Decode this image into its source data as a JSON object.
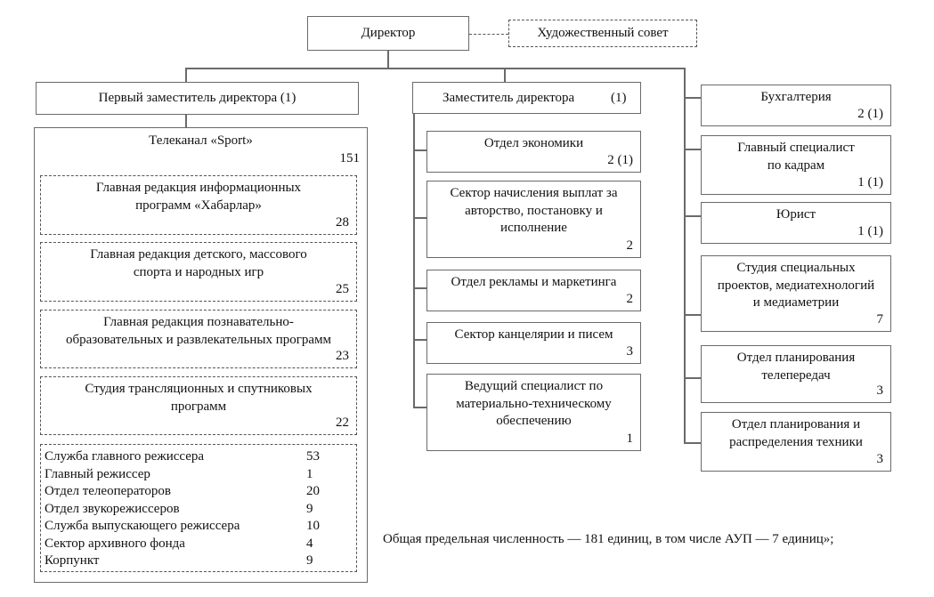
{
  "director": {
    "label": "Директор"
  },
  "art_council": {
    "label": "Художественный совет"
  },
  "first_deputy": {
    "label": "Первый заместитель директора (1)"
  },
  "deputy": {
    "label": "Заместитель директора",
    "count": "(1)"
  },
  "channel": {
    "title": "Телеканал «Sport»",
    "count": "151",
    "units": [
      {
        "lines": [
          "Главная редакция информационных",
          "программ  «Хабарлар»"
        ],
        "count": "28"
      },
      {
        "lines": [
          "Главная редакция детского, массового",
          "спорта и народных игр"
        ],
        "count": "25"
      },
      {
        "lines": [
          "Главная редакция познавательно-",
          "образовательных и развлекательных программ"
        ],
        "count": "23"
      },
      {
        "lines": [
          "Студия трансляционных и спутниковых",
          "программ"
        ],
        "count": "22"
      }
    ],
    "services": [
      {
        "label": "Служба главного режиссера",
        "count": "53"
      },
      {
        "label": "Главный режиссер",
        "count": "1"
      },
      {
        "label": "Отдел телеоператоров",
        "count": "20"
      },
      {
        "label": "Отдел звукорежиссеров",
        "count": "9"
      },
      {
        "label": "Служба выпускающего режиссера",
        "count": "10"
      },
      {
        "label": "Сектор архивного фонда",
        "count": "4"
      },
      {
        "label": "Корпункт",
        "count": "9"
      }
    ]
  },
  "deputy_units": [
    {
      "lines": [
        "Отдел экономики"
      ],
      "count": "2 (1)"
    },
    {
      "lines": [
        "Сектор начисления выплат за",
        "авторство, постановку и",
        "исполнение"
      ],
      "count": "2"
    },
    {
      "lines": [
        "Отдел рекламы и маркетинга"
      ],
      "count": "2"
    },
    {
      "lines": [
        "Сектор канцелярии и писем"
      ],
      "count": "3"
    },
    {
      "lines": [
        "Ведущий специалист по",
        "материально-техническому",
        "обеспечению"
      ],
      "count": "1"
    }
  ],
  "director_units": [
    {
      "lines": [
        "Бухгалтерия"
      ],
      "count": "2 (1)"
    },
    {
      "lines": [
        "Главный специалист",
        "по кадрам"
      ],
      "count": "1 (1)"
    },
    {
      "lines": [
        "Юрист"
      ],
      "count": "1 (1)"
    },
    {
      "lines": [
        "Студия специальных",
        "проектов, медиатехнологий",
        "и медиаметрии"
      ],
      "count": "7"
    },
    {
      "lines": [
        "Отдел планирования",
        "телепередач"
      ],
      "count": "3"
    },
    {
      "lines": [
        "Отдел планирования и",
        "распределения техники"
      ],
      "count": "3"
    }
  ],
  "footer": "Общая предельная численность — 181 единиц, в том числе АУП — 7 единиц»;"
}
